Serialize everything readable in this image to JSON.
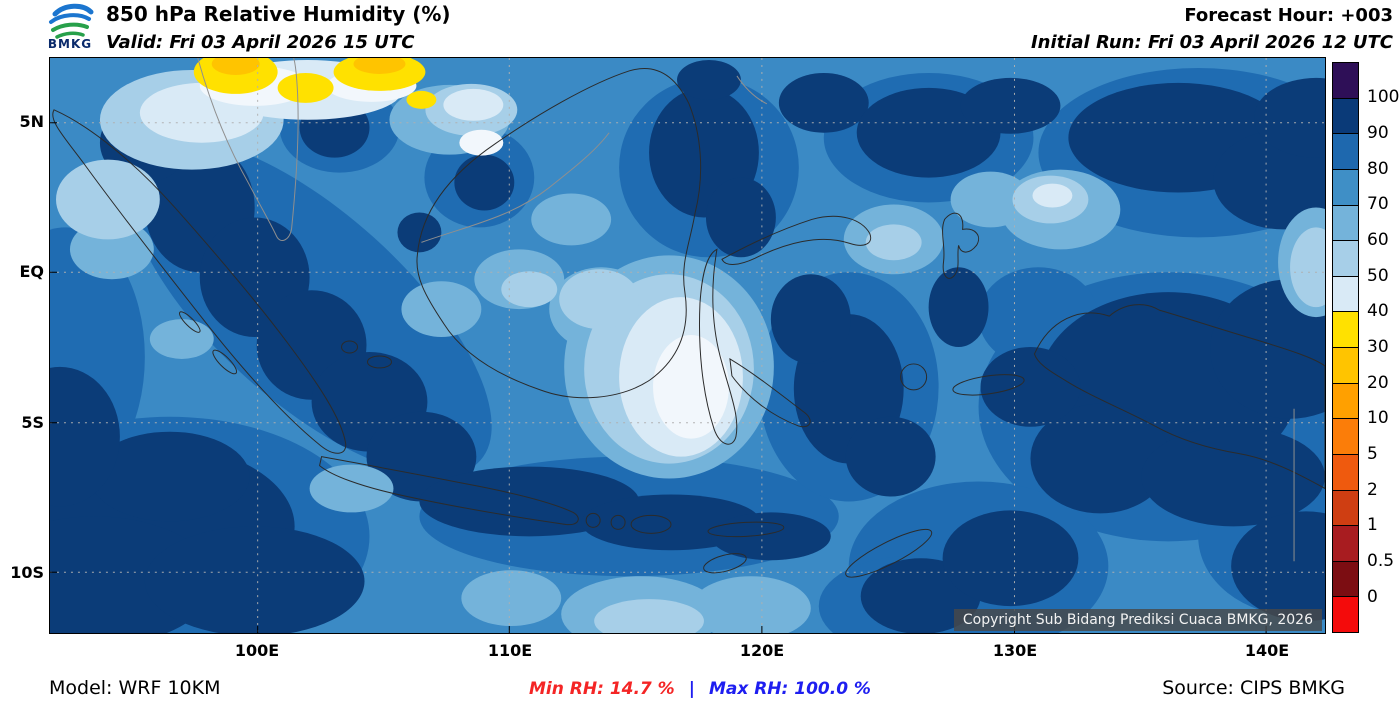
{
  "header": {
    "logo_text": "BMKG",
    "title": "850 hPa Relative Humidity (%)",
    "valid_time": "Valid: Fri 03 April 2026 15 UTC",
    "forecast_hour": "Forecast Hour: +003",
    "initial_run": "Initial Run: Fri 03 April 2026 12 UTC"
  },
  "map": {
    "lat_labels": [
      "5N",
      "EQ",
      "5S",
      "10S"
    ],
    "lon_labels": [
      "100E",
      "110E",
      "120E",
      "130E",
      "140E"
    ],
    "copyright": "Copyright Sub Bidang Prediksi Cuaca BMKG, 2026"
  },
  "colorbar": {
    "tick_labels": [
      "100",
      "90",
      "80",
      "70",
      "60",
      "50",
      "40",
      "30",
      "20",
      "10",
      "5",
      "2",
      "1",
      "0.5",
      "0"
    ],
    "segment_colors_top_to_bottom": [
      "#2e0f57",
      "#0a3a78",
      "#1e68ae",
      "#3f8fc6",
      "#74b3da",
      "#a7cfe8",
      "#d9eaf6",
      "#ffe100",
      "#ffc400",
      "#ffa000",
      "#fb7d09",
      "#ef5a0e",
      "#cf3e12",
      "#a81c20",
      "#7c0d12",
      "#f40b0b"
    ]
  },
  "footer": {
    "model": "Model: WRF 10KM",
    "min_rh": "Min RH:  14.7 %",
    "separator": "|",
    "max_rh": "Max RH: 100.0 %",
    "source": "Source: CIPS BMKG",
    "min_color": "#f42525",
    "max_color": "#1e1ef0"
  }
}
